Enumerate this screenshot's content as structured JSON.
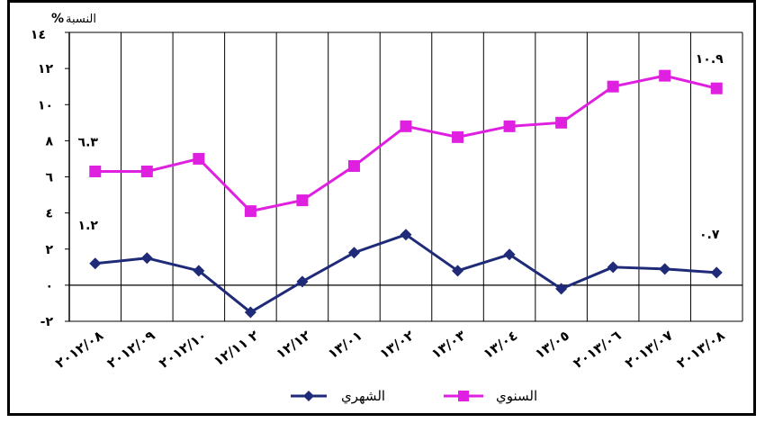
{
  "chart_data": {
    "type": "line",
    "unit_label": "النسبة",
    "unit_percent": "%",
    "categories": [
      "٢٠١٢/٠٨",
      "٢٠١٢/٠٩",
      "٢٠١٢/١٠",
      "٢ ١٢/١١",
      "١٢/١٢",
      "١٣/٠١",
      "١٣/٠٢",
      "١٣/٠٣",
      "١٣/٠٤",
      "١٣/٠٥",
      "٢٠١٣/٠٦",
      "٢٠١٣/٠٧",
      "٢٠١٣/٠٨"
    ],
    "yticks": [
      {
        "value": 14,
        "label": "١٤"
      },
      {
        "value": 12,
        "label": "١٢"
      },
      {
        "value": 10,
        "label": "١٠"
      },
      {
        "value": 8,
        "label": "٨"
      },
      {
        "value": 6,
        "label": "٦"
      },
      {
        "value": 4,
        "label": "٤"
      },
      {
        "value": 2,
        "label": "٢"
      },
      {
        "value": 0,
        "label": "٠"
      },
      {
        "value": -2,
        "label": "-٢"
      }
    ],
    "ylim": [
      -2,
      14
    ],
    "series": [
      {
        "name": "الشهري",
        "color": "#1f2a78",
        "marker": "diamond",
        "values": [
          1.2,
          1.5,
          0.8,
          -1.5,
          0.2,
          1.8,
          2.8,
          0.8,
          1.7,
          -0.2,
          1.0,
          0.9,
          0.7
        ]
      },
      {
        "name": "السنوي",
        "color": "#e020e0",
        "marker": "square",
        "values": [
          6.3,
          6.3,
          7.0,
          4.1,
          4.7,
          6.6,
          8.8,
          8.2,
          8.8,
          9.0,
          11.0,
          11.6,
          10.9
        ]
      }
    ],
    "annotations": [
      {
        "text": "٦.٣",
        "series": 1,
        "index": 0
      },
      {
        "text": "١٠.٩",
        "series": 1,
        "index": 12
      },
      {
        "text": "١.٢",
        "series": 0,
        "index": 0
      },
      {
        "text": "٠.٧",
        "series": 0,
        "index": 12
      }
    ],
    "grid": true,
    "legend_position": "bottom"
  }
}
